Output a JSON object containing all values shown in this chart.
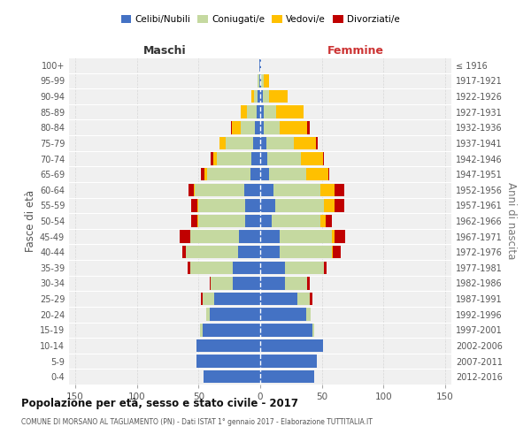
{
  "age_groups": [
    "0-4",
    "5-9",
    "10-14",
    "15-19",
    "20-24",
    "25-29",
    "30-34",
    "35-39",
    "40-44",
    "45-49",
    "50-54",
    "55-59",
    "60-64",
    "65-69",
    "70-74",
    "75-79",
    "80-84",
    "85-89",
    "90-94",
    "95-99",
    "100+"
  ],
  "birth_years": [
    "2012-2016",
    "2007-2011",
    "2002-2006",
    "1997-2001",
    "1992-1996",
    "1987-1991",
    "1982-1986",
    "1977-1981",
    "1972-1976",
    "1967-1971",
    "1962-1966",
    "1957-1961",
    "1952-1956",
    "1947-1951",
    "1942-1946",
    "1937-1941",
    "1932-1936",
    "1927-1931",
    "1922-1926",
    "1917-1921",
    "≤ 1916"
  ],
  "colors": {
    "celibi": "#4472c4",
    "coniugati": "#c5d9a0",
    "vedovi": "#ffc000",
    "divorziati": "#c00000",
    "background": "#f0f0f0",
    "grid": "#cccccc"
  },
  "males": {
    "celibi": [
      46,
      52,
      52,
      47,
      41,
      37,
      22,
      22,
      18,
      17,
      12,
      12,
      13,
      8,
      7,
      6,
      4,
      3,
      2,
      1,
      1
    ],
    "coniugati": [
      0,
      0,
      0,
      2,
      3,
      10,
      18,
      35,
      42,
      40,
      38,
      38,
      40,
      35,
      28,
      22,
      12,
      8,
      3,
      1,
      0
    ],
    "vedovi": [
      0,
      0,
      0,
      0,
      0,
      0,
      0,
      0,
      0,
      0,
      1,
      1,
      1,
      2,
      3,
      5,
      7,
      5,
      2,
      0,
      0
    ],
    "divorziati": [
      0,
      0,
      0,
      0,
      0,
      1,
      1,
      2,
      3,
      8,
      5,
      5,
      4,
      3,
      2,
      0,
      1,
      0,
      0,
      0,
      0
    ]
  },
  "females": {
    "nubili": [
      44,
      46,
      51,
      42,
      37,
      30,
      20,
      20,
      16,
      16,
      9,
      12,
      11,
      7,
      6,
      5,
      3,
      3,
      2,
      1,
      1
    ],
    "coniugati": [
      0,
      0,
      0,
      2,
      4,
      10,
      18,
      32,
      42,
      42,
      40,
      40,
      38,
      30,
      27,
      22,
      13,
      10,
      5,
      2,
      0
    ],
    "vedovi": [
      0,
      0,
      0,
      0,
      0,
      0,
      0,
      0,
      1,
      2,
      4,
      8,
      11,
      18,
      18,
      18,
      22,
      22,
      15,
      4,
      0
    ],
    "divorziati": [
      0,
      0,
      0,
      0,
      0,
      2,
      2,
      2,
      6,
      9,
      5,
      8,
      8,
      1,
      1,
      2,
      2,
      0,
      0,
      0,
      0
    ]
  },
  "title": "Popolazione per età, sesso e stato civile - 2017",
  "subtitle": "COMUNE DI MORSANO AL TAGLIAMENTO (PN) - Dati ISTAT 1° gennaio 2017 - Elaborazione TUTTITALIA.IT",
  "label_maschi": "Maschi",
  "label_femmine": "Femmine",
  "ylabel_left": "Fasce di età",
  "ylabel_right": "Anni di nascita",
  "legend_labels": [
    "Celibi/Nubili",
    "Coniugati/e",
    "Vedovi/e",
    "Divorziati/e"
  ],
  "xlim": 155
}
